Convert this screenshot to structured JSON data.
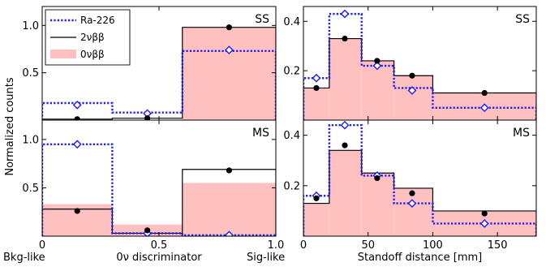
{
  "colors": {
    "ra226": "#1a1aff",
    "two_nu": "#000000",
    "zero_nu_fill": "#ffc0c0",
    "marker_fill": "#ffffff"
  },
  "legend": {
    "ra226": "Ra-226",
    "two_nu": "2νββ",
    "zero_nu": "0νββ"
  },
  "shared_ylabel": "Normalized counts",
  "left_extra_labels": {
    "bkg_like": "Bkg-like",
    "sig_like": "Sig-like"
  },
  "chart_data": [
    {
      "id": "disc-ss",
      "type": "histogram",
      "panel_label": "SS",
      "xlabel": "",
      "ylabel": "",
      "xlim": [
        0,
        1.0
      ],
      "ylim": [
        0,
        1.2
      ],
      "yticks": [
        0.5,
        1.0
      ],
      "yticklabels": [
        "0.5",
        "1.0"
      ],
      "xticks": [
        0,
        0.5,
        1.0
      ],
      "xticklabels": [],
      "bin_edges": [
        0,
        0.3,
        0.6,
        1.0
      ],
      "zero_nu": [
        0.0,
        0.0,
        0.98
      ],
      "two_nu": [
        0.01,
        0.02,
        0.98
      ],
      "ra226": [
        0.18,
        0.08,
        0.73
      ],
      "two_nu_points": {
        "x": [
          0.15,
          0.45,
          0.8
        ],
        "y": [
          0.01,
          0.02,
          0.98
        ]
      },
      "ra226_points": {
        "x": [
          0.15,
          0.45,
          0.8
        ],
        "y": [
          0.16,
          0.07,
          0.74
        ]
      }
    },
    {
      "id": "disc-ms",
      "type": "histogram",
      "panel_label": "MS",
      "xlabel": "0ν discriminator",
      "ylabel": "",
      "xlim": [
        0,
        1.0
      ],
      "ylim": [
        0,
        1.2
      ],
      "yticks": [
        0.5,
        1.0
      ],
      "yticklabels": [
        "0.5",
        "1.0"
      ],
      "xticks": [
        0,
        0.5,
        1.0
      ],
      "xticklabels": [
        "0",
        "0.5",
        "1.0"
      ],
      "bin_edges": [
        0,
        0.3,
        0.6,
        1.0
      ],
      "zero_nu": [
        0.33,
        0.12,
        0.55
      ],
      "two_nu": [
        0.28,
        0.03,
        0.69
      ],
      "ra226": [
        0.95,
        0.03,
        0.01
      ],
      "two_nu_points": {
        "x": [
          0.15,
          0.45,
          0.8
        ],
        "y": [
          0.26,
          0.06,
          0.68
        ]
      },
      "ra226_points": {
        "x": [
          0.15,
          0.45,
          0.8
        ],
        "y": [
          0.95,
          0.03,
          0.01
        ]
      }
    },
    {
      "id": "standoff-ss",
      "type": "histogram",
      "panel_label": "SS",
      "xlabel": "",
      "ylabel": "",
      "xlim": [
        0,
        180
      ],
      "ylim": [
        0,
        0.46
      ],
      "yticks": [
        0.2,
        0.4
      ],
      "yticklabels": [
        "0.2",
        "0.4"
      ],
      "xticks": [
        0,
        50,
        100,
        150
      ],
      "xticklabels": [],
      "bin_edges": [
        0,
        20,
        45,
        70,
        100,
        180
      ],
      "zero_nu": [
        0.13,
        0.33,
        0.24,
        0.18,
        0.11
      ],
      "two_nu": [
        0.13,
        0.33,
        0.24,
        0.18,
        0.11
      ],
      "ra226": [
        0.17,
        0.43,
        0.22,
        0.13,
        0.05
      ],
      "two_nu_points": {
        "x": [
          10,
          32,
          57,
          84,
          140
        ],
        "y": [
          0.13,
          0.33,
          0.24,
          0.18,
          0.11
        ]
      },
      "ra226_points": {
        "x": [
          10,
          32,
          57,
          84,
          140
        ],
        "y": [
          0.17,
          0.43,
          0.22,
          0.12,
          0.05
        ]
      }
    },
    {
      "id": "standoff-ms",
      "type": "histogram",
      "panel_label": "MS",
      "xlabel": "Standoff distance [mm]",
      "ylabel": "",
      "xlim": [
        0,
        180
      ],
      "ylim": [
        0,
        0.46
      ],
      "yticks": [
        0.2,
        0.4
      ],
      "yticklabels": [
        "0.2",
        "0.4"
      ],
      "xticks": [
        0,
        50,
        100,
        150
      ],
      "xticklabels": [
        "0",
        "50",
        "100",
        "150"
      ],
      "bin_edges": [
        0,
        20,
        45,
        70,
        100,
        180
      ],
      "zero_nu": [
        0.13,
        0.34,
        0.25,
        0.19,
        0.1
      ],
      "two_nu": [
        0.13,
        0.34,
        0.25,
        0.19,
        0.1
      ],
      "ra226": [
        0.16,
        0.44,
        0.24,
        0.13,
        0.05
      ],
      "two_nu_points": {
        "x": [
          10,
          32,
          57,
          84,
          140
        ],
        "y": [
          0.15,
          0.36,
          0.23,
          0.17,
          0.09
        ]
      },
      "ra226_points": {
        "x": [
          10,
          32,
          57,
          84,
          140
        ],
        "y": [
          0.16,
          0.44,
          0.24,
          0.13,
          0.05
        ]
      }
    }
  ]
}
